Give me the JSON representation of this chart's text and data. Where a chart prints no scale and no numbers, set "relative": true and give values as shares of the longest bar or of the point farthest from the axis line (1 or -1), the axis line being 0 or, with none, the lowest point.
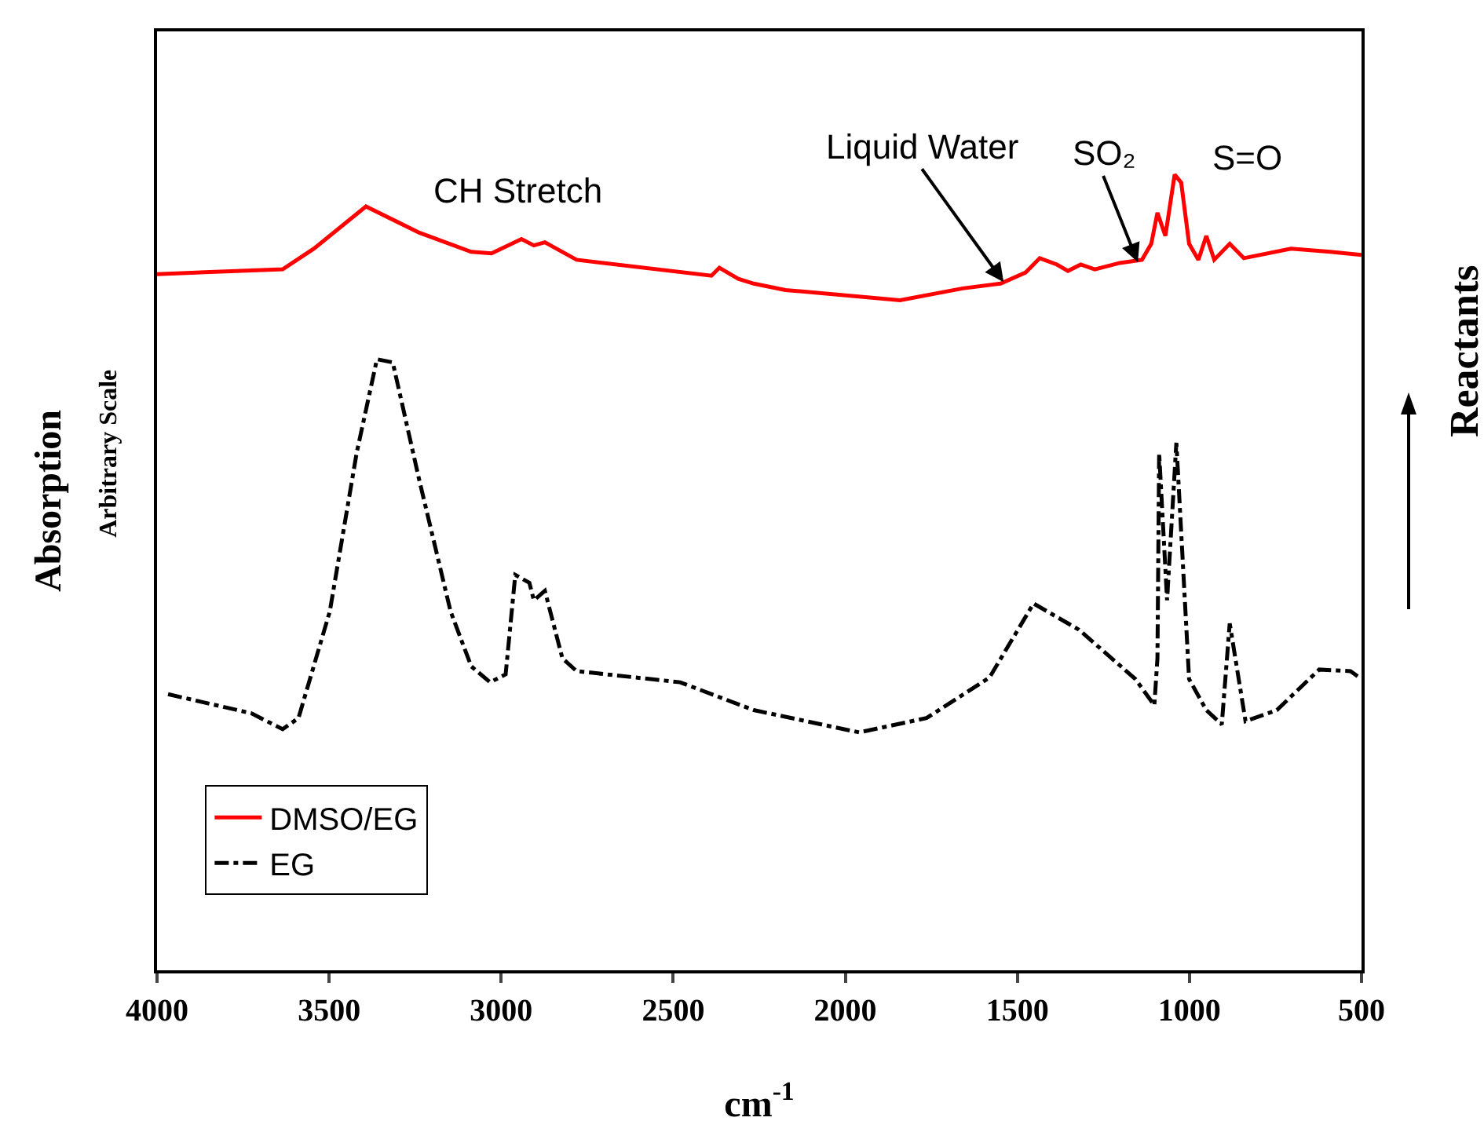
{
  "chart_data": {
    "type": "line",
    "relative": true,
    "xlabel": "cm$^{-1}$",
    "ylabel": "Absorption",
    "xlim": [
      4000,
      500
    ],
    "xticks": [
      4000,
      3500,
      3000,
      2500,
      2000,
      1500,
      1000,
      500
    ],
    "grid": false,
    "legend": "bottom left",
    "marker": "none",
    "annotations": [
      "Arbitrary Scale",
      "CH Stretch",
      {
        "text": "Liquid Water",
        "x": 1540,
        "y": 0.865
      },
      {
        "text": "SO₂",
        "x": 1150,
        "y": 0.89
      },
      "S=O",
      "Reactants"
    ],
    "series": [
      {
        "name": "DMSO/EG",
        "color": "#ff0000",
        "line_style": "solid",
        "x": [
          4000,
          3635,
          3544,
          3393,
          3238,
          3087,
          3028,
          2941,
          2905,
          2873,
          2781,
          2389,
          2366,
          2311,
          2266,
          2174,
          1841,
          1659,
          1549,
          1476,
          1435,
          1385,
          1353,
          1316,
          1275,
          1202,
          1138,
          1111,
          1093,
          1070,
          1043,
          1024,
          1001,
          974,
          951,
          928,
          883,
          842,
          705,
          591,
          500
        ],
        "values": [
          0.875,
          0.881,
          0.907,
          0.96,
          0.927,
          0.903,
          0.901,
          0.919,
          0.911,
          0.915,
          0.893,
          0.873,
          0.883,
          0.869,
          0.863,
          0.855,
          0.842,
          0.857,
          0.863,
          0.877,
          0.895,
          0.887,
          0.879,
          0.887,
          0.881,
          0.889,
          0.893,
          0.913,
          0.952,
          0.923,
          1,
          0.99,
          0.913,
          0.893,
          0.923,
          0.893,
          0.913,
          0.895,
          0.907,
          0.903,
          0.899
        ]
      },
      {
        "name": "EG",
        "color": "#000000",
        "line_style": "dashdot",
        "x": [
          3968,
          3726,
          3635,
          3589,
          3498,
          3420,
          3361,
          3315,
          3238,
          3147,
          3087,
          3032,
          2987,
          2959,
          2918,
          2905,
          2873,
          2822,
          2781,
          2480,
          2266,
          1960,
          1764,
          1581,
          1453,
          1321,
          1157,
          1102,
          1093,
          1088,
          1065,
          1038,
          1001,
          951,
          906,
          883,
          837,
          746,
          623,
          532,
          500
        ],
        "values": [
          0.347,
          0.323,
          0.303,
          0.317,
          0.451,
          0.65,
          0.768,
          0.764,
          0.616,
          0.451,
          0.382,
          0.362,
          0.372,
          0.497,
          0.487,
          0.465,
          0.477,
          0.392,
          0.376,
          0.362,
          0.327,
          0.299,
          0.317,
          0.368,
          0.461,
          0.428,
          0.366,
          0.333,
          0.392,
          0.65,
          0.465,
          0.663,
          0.366,
          0.327,
          0.309,
          0.436,
          0.313,
          0.327,
          0.378,
          0.376,
          0.366
        ]
      }
    ]
  }
}
